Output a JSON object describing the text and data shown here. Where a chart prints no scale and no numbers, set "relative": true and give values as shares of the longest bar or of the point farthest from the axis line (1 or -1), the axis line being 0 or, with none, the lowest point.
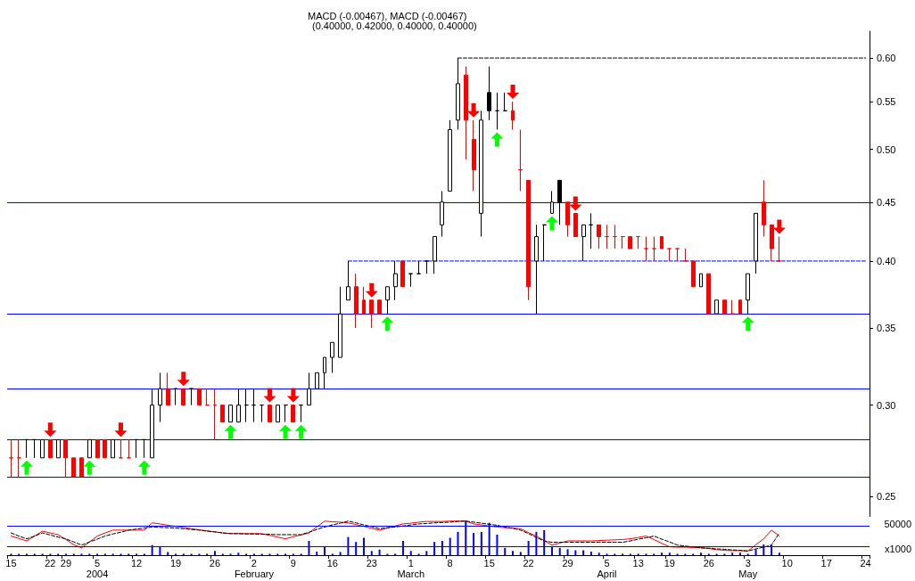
{
  "chart_data": [
    {
      "type": "candlestick",
      "title": "(0.40000, 0.42000, 0.40000, 0.40000)",
      "subtitle": "MACD (-0.00467), MACD (-0.00467)",
      "categories": [
        "15",
        null,
        null,
        null,
        null,
        "22",
        null,
        "29",
        null,
        null,
        null,
        "5",
        null,
        null,
        null,
        null,
        "12",
        null,
        null,
        null,
        null,
        "19",
        null,
        null,
        null,
        null,
        "26",
        null,
        null,
        null,
        null,
        "2",
        null,
        null,
        null,
        null,
        "9",
        null,
        null,
        null,
        null,
        "16",
        null,
        null,
        null,
        null,
        "23",
        null,
        null,
        null,
        null,
        "1",
        null,
        null,
        null,
        null,
        "8",
        null,
        null,
        null,
        null,
        "15",
        null,
        null,
        null,
        null,
        "22",
        null,
        null,
        null,
        null,
        "29",
        null,
        null,
        null,
        null,
        "5",
        null,
        null,
        null,
        "13",
        null,
        null,
        null,
        "19",
        null,
        null,
        null,
        null,
        "26",
        null,
        null,
        null,
        null,
        "3",
        null,
        null,
        null,
        null,
        "10",
        null,
        null,
        null,
        null,
        "17",
        null,
        null,
        null,
        null,
        "24"
      ],
      "ohlc": [
        [
          0.27,
          0.28,
          0.26,
          0.27
        ],
        [
          0.27,
          0.28,
          0.26,
          0.27
        ],
        [
          0.28,
          0.28,
          0.27,
          0.28
        ],
        [
          0.28,
          0.28,
          0.27,
          0.28
        ],
        [
          0.27,
          0.28,
          0.27,
          0.28
        ],
        [
          0.28,
          0.28,
          0.27,
          0.27
        ],
        [
          0.27,
          0.28,
          0.27,
          0.28
        ],
        [
          0.28,
          0.28,
          0.26,
          0.27
        ],
        [
          0.27,
          0.27,
          0.26,
          0.26
        ],
        [
          0.27,
          0.27,
          0.26,
          0.26
        ],
        [
          0.27,
          0.28,
          0.27,
          0.28
        ],
        [
          0.28,
          0.28,
          0.27,
          0.27
        ],
        [
          0.28,
          0.28,
          0.27,
          0.27
        ],
        [
          0.27,
          0.28,
          0.27,
          0.28
        ],
        [
          0.27,
          0.28,
          0.27,
          0.27
        ],
        [
          0.27,
          0.28,
          0.27,
          0.27
        ],
        [
          0.28,
          0.28,
          0.27,
          0.28
        ],
        [
          0.28,
          0.28,
          0.27,
          0.28
        ],
        [
          0.27,
          0.31,
          0.27,
          0.3
        ],
        [
          0.3,
          0.32,
          0.29,
          0.31
        ],
        [
          0.31,
          0.32,
          0.3,
          0.3
        ],
        [
          0.31,
          0.31,
          0.3,
          0.31
        ],
        [
          0.31,
          0.31,
          0.3,
          0.3
        ],
        [
          0.31,
          0.31,
          0.3,
          0.31
        ],
        [
          0.31,
          0.31,
          0.3,
          0.3
        ],
        [
          0.3,
          0.31,
          0.3,
          0.3
        ],
        [
          0.3,
          0.31,
          0.28,
          0.3
        ],
        [
          0.3,
          0.3,
          0.29,
          0.29
        ],
        [
          0.29,
          0.3,
          0.29,
          0.3
        ],
        [
          0.29,
          0.31,
          0.29,
          0.3
        ],
        [
          0.3,
          0.31,
          0.29,
          0.3
        ],
        [
          0.3,
          0.31,
          0.29,
          0.3
        ],
        [
          0.3,
          0.3,
          0.29,
          0.3
        ],
        [
          0.3,
          0.3,
          0.29,
          0.29
        ],
        [
          0.29,
          0.3,
          0.29,
          0.3
        ],
        [
          0.3,
          0.3,
          0.29,
          0.3
        ],
        [
          0.3,
          0.3,
          0.29,
          0.29
        ],
        [
          0.3,
          0.3,
          0.29,
          0.3
        ],
        [
          0.3,
          0.32,
          0.3,
          0.31
        ],
        [
          0.31,
          0.32,
          0.31,
          0.32
        ],
        [
          0.32,
          0.33,
          0.31,
          0.33
        ],
        [
          0.33,
          0.34,
          0.32,
          0.34
        ],
        [
          0.33,
          0.38,
          0.33,
          0.36
        ],
        [
          0.37,
          0.4,
          0.37,
          0.38
        ],
        [
          0.38,
          0.39,
          0.35,
          0.36
        ],
        [
          0.37,
          0.38,
          0.36,
          0.36
        ],
        [
          0.37,
          0.37,
          0.35,
          0.36
        ],
        [
          0.37,
          0.37,
          0.36,
          0.36
        ],
        [
          0.37,
          0.38,
          0.36,
          0.38
        ],
        [
          0.38,
          0.4,
          0.37,
          0.39
        ],
        [
          0.4,
          0.4,
          0.38,
          0.38
        ],
        [
          0.39,
          0.39,
          0.38,
          0.39
        ],
        [
          0.39,
          0.4,
          0.39,
          0.39
        ],
        [
          0.4,
          0.4,
          0.39,
          0.4
        ],
        [
          0.4,
          0.42,
          0.39,
          0.42
        ],
        [
          0.43,
          0.46,
          0.42,
          0.45
        ],
        [
          0.46,
          0.53,
          0.46,
          0.52
        ],
        [
          0.53,
          0.6,
          0.52,
          0.57
        ],
        [
          0.58,
          0.59,
          0.49,
          0.53
        ],
        [
          0.51,
          0.53,
          0.46,
          0.48
        ],
        [
          0.44,
          0.54,
          0.42,
          0.53
        ],
        [
          0.56,
          0.59,
          0.53,
          0.54
        ],
        [
          0.54,
          0.56,
          0.52,
          0.54
        ],
        [
          0.54,
          0.56,
          0.54,
          0.54
        ],
        [
          0.54,
          0.55,
          0.52,
          0.53
        ],
        [
          0.48,
          0.52,
          0.46,
          0.48
        ],
        [
          0.47,
          0.47,
          0.37,
          0.38
        ],
        [
          0.4,
          0.43,
          0.36,
          0.42
        ],
        [
          0.43,
          0.43,
          0.4,
          0.43
        ],
        [
          0.44,
          0.46,
          0.44,
          0.45
        ],
        [
          0.47,
          0.47,
          0.43,
          0.45
        ],
        [
          0.45,
          0.45,
          0.42,
          0.43
        ],
        [
          0.44,
          0.44,
          0.42,
          0.42
        ],
        [
          0.42,
          0.43,
          0.4,
          0.43
        ],
        [
          0.43,
          0.44,
          0.41,
          0.43
        ],
        [
          0.43,
          0.43,
          0.41,
          0.42
        ],
        [
          0.42,
          0.43,
          0.41,
          0.42
        ],
        [
          0.42,
          0.43,
          0.41,
          0.42
        ],
        [
          0.42,
          0.42,
          0.41,
          0.42
        ],
        [
          0.42,
          0.42,
          0.41,
          0.41
        ],
        [
          0.42,
          0.42,
          0.41,
          0.42
        ],
        [
          0.41,
          0.42,
          0.4,
          0.41
        ],
        [
          0.41,
          0.42,
          0.4,
          0.41
        ],
        [
          0.42,
          0.42,
          0.41,
          0.41
        ],
        [
          0.41,
          0.41,
          0.4,
          0.41
        ],
        [
          0.41,
          0.41,
          0.4,
          0.41
        ],
        [
          0.4,
          0.41,
          0.4,
          0.4
        ],
        [
          0.4,
          0.4,
          0.38,
          0.38
        ],
        [
          0.38,
          0.39,
          0.38,
          0.39
        ],
        [
          0.39,
          0.39,
          0.36,
          0.36
        ],
        [
          0.36,
          0.37,
          0.36,
          0.37
        ],
        [
          0.37,
          0.37,
          0.36,
          0.36
        ],
        [
          0.36,
          0.37,
          0.36,
          0.36
        ],
        [
          0.37,
          0.37,
          0.36,
          0.36
        ],
        [
          0.37,
          0.39,
          0.36,
          0.39
        ],
        [
          0.4,
          0.44,
          0.39,
          0.44
        ],
        [
          0.45,
          0.47,
          0.42,
          0.43
        ],
        [
          0.43,
          0.43,
          0.4,
          0.41
        ],
        [
          0.4,
          0.42,
          0.4,
          0.4
        ],
        null,
        null,
        null,
        null,
        null,
        null,
        null,
        null,
        null,
        null,
        null
      ],
      "colors": [
        "#ff0000",
        "#ff0000",
        "#000000",
        "#000000",
        "#ffffff",
        "#ff0000",
        "#ffffff",
        "#ff0000",
        "#ff0000",
        "#ff0000",
        "#ffffff",
        "#ff0000",
        "#ff0000",
        "#ffffff",
        "#ff0000",
        "#ff0000",
        "#000000",
        "#000000",
        "#ffffff",
        "#ffffff",
        "#ff0000",
        "#000000",
        "#ff0000",
        "#000000",
        "#ff0000",
        "#ff0000",
        "#ff0000",
        "#ff0000",
        "#ffffff",
        "#ffffff",
        "#000000",
        "#000000",
        "#000000",
        "#ff0000",
        "#ffffff",
        "#000000",
        "#ff0000",
        "#000000",
        "#ffffff",
        "#ffffff",
        "#ffffff",
        "#ffffff",
        "#ffffff",
        "#ffffff",
        "#ff0000",
        "#ff0000",
        "#ff0000",
        "#ff0000",
        "#ffffff",
        "#ffffff",
        "#ff0000",
        "#000000",
        "#000000",
        "#000000",
        "#ffffff",
        "#ffffff",
        "#ffffff",
        "#ffffff",
        "#ff0000",
        "#ff0000",
        "#ffffff",
        "#000000",
        "#000000",
        "#000000",
        "#ff0000",
        "#ff0000",
        "#ff0000",
        "#ffffff",
        "#000000",
        "#ffffff",
        "#000000",
        "#ff0000",
        "#ff0000",
        "#ffffff",
        "#000000",
        "#ff0000",
        "#ff0000",
        "#ff0000",
        "#ff0000",
        "#ff0000",
        "#ff0000",
        "#ff0000",
        "#ff0000",
        "#ff0000",
        "#ff0000",
        "#ff0000",
        "#ff0000",
        "#ff0000",
        "#ffffff",
        "#ff0000",
        "#ffffff",
        "#ff0000",
        "#ff0000",
        "#ff0000",
        "#ffffff",
        "#ffffff",
        "#ff0000",
        "#ff0000",
        "#ff0000",
        null,
        null,
        null,
        null,
        null,
        null,
        null,
        null,
        null,
        null,
        null
      ],
      "series": [
        {
          "type": "line",
          "color": "#0000ff",
          "line_style": "dashed",
          "values": [
            null,
            null,
            null,
            null,
            null,
            null,
            null,
            null,
            null,
            null,
            null,
            null,
            null,
            null,
            null,
            null,
            null,
            null,
            null,
            null,
            null,
            null,
            null,
            null,
            null,
            null,
            null,
            null,
            null,
            null,
            null,
            null,
            null,
            null,
            null,
            null,
            null,
            null,
            null,
            null,
            null,
            null,
            null,
            0.4,
            0.4,
            0.4,
            0.4,
            0.4,
            0.4,
            0.4,
            0.4,
            0.4,
            0.4,
            0.4,
            0.4,
            0.4,
            0.4,
            0.4,
            0.4,
            0.4,
            0.4,
            0.4,
            0.4,
            0.4,
            0.4,
            0.4,
            0.4,
            0.4,
            0.4,
            0.4,
            0.4,
            0.4,
            0.4,
            0.4,
            0.4,
            0.4,
            0.4,
            0.4,
            0.4,
            0.4,
            0.4,
            0.4,
            0.4,
            0.4,
            0.4,
            0.4,
            0.4,
            0.4,
            0.4,
            0.4,
            0.4,
            0.4,
            0.4,
            0.4,
            0.4,
            0.4,
            0.4,
            0.4,
            0.4,
            0.4,
            0.4,
            0.4,
            0.4,
            0.4,
            0.4,
            0.4,
            0.4,
            0.4,
            0.4,
            0.4
          ]
        },
        {
          "type": "line",
          "color": "#000000",
          "line_style": "dashed",
          "values": [
            null,
            null,
            null,
            null,
            null,
            null,
            null,
            null,
            null,
            null,
            null,
            null,
            null,
            null,
            null,
            null,
            null,
            null,
            null,
            null,
            null,
            null,
            null,
            null,
            null,
            null,
            null,
            null,
            null,
            null,
            null,
            null,
            null,
            null,
            null,
            null,
            null,
            null,
            null,
            null,
            null,
            null,
            null,
            null,
            null,
            null,
            null,
            null,
            null,
            null,
            null,
            null,
            null,
            null,
            null,
            null,
            null,
            0.6,
            0.6,
            0.6,
            0.6,
            0.6,
            0.6,
            0.6,
            0.6,
            0.6,
            0.6,
            0.6,
            0.6,
            0.6,
            0.6,
            0.6,
            0.6,
            0.6,
            0.6,
            0.6,
            0.6,
            0.6,
            0.6,
            0.6,
            0.6,
            0.6,
            0.6,
            0.6,
            0.6,
            0.6,
            0.6,
            0.6,
            0.6,
            0.6,
            0.6,
            0.6,
            0.6,
            0.6,
            0.6,
            0.6,
            0.6,
            0.6,
            0.6,
            0.6,
            0.6,
            0.6,
            0.6,
            0.6,
            0.6,
            0.6,
            0.6,
            0.6,
            0.6,
            0.6
          ]
        }
      ],
      "ref_lines": [
        {
          "axis": "y",
          "value": 0.45,
          "color": "#0000ff"
        },
        {
          "axis": "y",
          "value": 0.36,
          "color": "#0000ff"
        },
        {
          "axis": "y",
          "value": 0.31,
          "color": "#0000ff"
        },
        {
          "axis": "y",
          "value": 0.28,
          "color": "#0000ff"
        },
        {
          "axis": "y",
          "value": 0.26,
          "color": "#0000ff"
        }
      ],
      "ylim": [
        0.24,
        0.633
      ],
      "log": true,
      "marker": "none",
      "tick_labels": "y",
      "yticks": [
        {
          "value": 0.25,
          "label": "0.25"
        },
        {
          "value": 0.3,
          "label": "0.30"
        },
        {
          "value": 0.35,
          "label": "0.35"
        },
        {
          "value": 0.4,
          "label": "0.40"
        },
        {
          "value": 0.45,
          "label": "0.45"
        },
        {
          "value": 0.5,
          "label": "0.50"
        },
        {
          "value": 0.55,
          "label": "0.55"
        },
        {
          "value": 0.6,
          "label": "0.60"
        }
      ]
    },
    {
      "type": "bar",
      "relative": true,
      "marker": "none",
      "tick_labels": "x",
      "categories": [
        "15",
        null,
        null,
        null,
        null,
        "22",
        null,
        "29",
        null,
        null,
        null,
        "5\n2004",
        null,
        null,
        null,
        null,
        "12",
        null,
        null,
        null,
        null,
        "19",
        null,
        null,
        null,
        null,
        "26",
        null,
        null,
        null,
        null,
        "2\nFebruary",
        null,
        null,
        null,
        null,
        "9",
        null,
        null,
        null,
        null,
        "16",
        null,
        null,
        null,
        null,
        "23",
        null,
        null,
        null,
        null,
        "1\nMarch",
        null,
        null,
        null,
        null,
        "8",
        null,
        null,
        null,
        null,
        "15",
        null,
        null,
        null,
        null,
        "22",
        null,
        null,
        null,
        null,
        "29",
        null,
        null,
        null,
        null,
        "5\nApril",
        null,
        null,
        null,
        "13",
        null,
        null,
        null,
        "19",
        null,
        null,
        null,
        null,
        "26",
        null,
        null,
        null,
        null,
        "3\nMay",
        null,
        null,
        null,
        null,
        "10",
        null,
        null,
        null,
        null,
        "17",
        null,
        null,
        null,
        null,
        "24"
      ],
      "series": [
        {
          "type": "bar",
          "color": "#0000ff",
          "values": [
            0.04,
            0.04,
            0.04,
            0.04,
            0.04,
            0.04,
            0.04,
            0.04,
            0.04,
            0.04,
            0.04,
            0.04,
            0.04,
            0.04,
            0.04,
            0.04,
            0.04,
            0.04,
            0.29,
            0.26,
            0.09,
            0.04,
            0.04,
            0.04,
            0.04,
            0.04,
            0.12,
            0.04,
            0.04,
            0.07,
            0.04,
            0.04,
            0.04,
            0.04,
            0.04,
            0.04,
            0.04,
            0.04,
            0.41,
            0.1,
            0.24,
            0.04,
            0.09,
            0.52,
            0.38,
            0.5,
            0.12,
            0.16,
            0.04,
            0.04,
            0.41,
            0.12,
            0.04,
            0.12,
            0.38,
            0.41,
            0.5,
            0.67,
            1,
            0.64,
            0.67,
            0.93,
            0.59,
            0.21,
            0.12,
            0.09,
            0.41,
            0.67,
            0.72,
            0.26,
            0.21,
            0.17,
            0.14,
            0.14,
            0.1,
            0.07,
            0.04,
            0.04,
            0.04,
            0.04,
            0.04,
            0.04,
            0.04,
            0.07,
            0.07,
            0.04,
            0.04,
            0.04,
            0.07,
            0.04,
            0.04,
            0.04,
            0.07,
            0.07,
            0.04,
            0.17,
            0.31,
            0.29,
            0.07,
            null,
            null,
            null,
            null,
            null,
            null,
            null,
            null,
            null,
            null,
            null
          ]
        },
        {
          "type": "line",
          "color": "#ff0000",
          "values": [
            0.55,
            0.48,
            0.41,
            0.55,
            0.69,
            0.64,
            0.59,
            0.45,
            0.3,
            0.21,
            0.38,
            0.55,
            0.64,
            0.72,
            0.72,
            0.72,
            0.72,
            0.72,
            0.93,
            0.9,
            0.86,
            0.83,
            0.8,
            0.76,
            0.73,
            0.7,
            0.67,
            0.64,
            0.62,
            0.62,
            0.62,
            0.62,
            0.62,
            0.57,
            0.52,
            0.47,
            0.53,
            0.58,
            0.64,
            0.81,
            0.98,
            0.96,
            0.95,
            0.93,
            0.88,
            0.83,
            0.77,
            0.72,
            0.78,
            0.84,
            0.9,
            0.92,
            0.95,
            0.97,
            0.97,
            0.97,
            0.98,
            0.98,
            0.98,
            0.9,
            0.87,
            0.84,
            0.81,
            0.79,
            0.78,
            0.76,
            0.65,
            0.55,
            0.42,
            0.29,
            0.35,
            0.41,
            0.41,
            0.41,
            0.41,
            0.42,
            0.43,
            0.44,
            0.45,
            0.47,
            0.51,
            0.55,
            0.45,
            0.34,
            0.24,
            0.23,
            0.23,
            0.22,
            0.21,
            0.19,
            0.16,
            0.14,
            0.13,
            0.13,
            0.12,
            0.3,
            0.47,
            0.72,
            0.55,
            null,
            null,
            null,
            null,
            null,
            null,
            null,
            null,
            null,
            null,
            null
          ]
        },
        {
          "type": "line",
          "color": "#000000",
          "line_style": "dashed",
          "values": [
            0.64,
            0.55,
            0.47,
            0.55,
            0.64,
            0.58,
            0.52,
            0.47,
            0.38,
            0.29,
            0.38,
            0.46,
            0.55,
            0.61,
            0.66,
            0.72,
            0.75,
            0.78,
            0.81,
            0.8,
            0.79,
            0.78,
            0.76,
            0.74,
            0.72,
            0.69,
            0.67,
            0.64,
            0.62,
            0.62,
            0.61,
            0.61,
            0.6,
            0.6,
            0.59,
            0.59,
            0.59,
            0.59,
            0.66,
            0.74,
            0.81,
            0.87,
            0.92,
            0.98,
            0.93,
            0.87,
            0.82,
            0.76,
            0.79,
            0.81,
            0.84,
            0.87,
            0.9,
            0.91,
            0.93,
            0.94,
            0.95,
            0.97,
            0.98,
            0.95,
            0.92,
            0.89,
            0.86,
            0.81,
            0.77,
            0.72,
            0.62,
            0.51,
            0.41,
            0.37,
            0.37,
            0.37,
            0.37,
            0.37,
            0.37,
            0.37,
            0.37,
            0.37,
            0.37,
            0.41,
            0.46,
            0.5,
            0.55,
            0.46,
            0.38,
            0.29,
            0.26,
            0.24,
            0.21,
            0.2,
            0.18,
            0.17,
            0.15,
            0.14,
            0.12,
            0.18,
            0.23,
            0.29,
            0.64,
            null,
            null,
            null,
            null,
            null,
            null,
            null,
            null,
            null,
            null,
            null
          ]
        }
      ],
      "ref_lines": [
        {
          "axis": "y",
          "value": 0.85,
          "color": "#0000ff"
        },
        {
          "axis": "y",
          "value": 0.26,
          "color": "#0000ff"
        }
      ],
      "annotations": [
        "50000",
        "x1000"
      ]
    }
  ]
}
